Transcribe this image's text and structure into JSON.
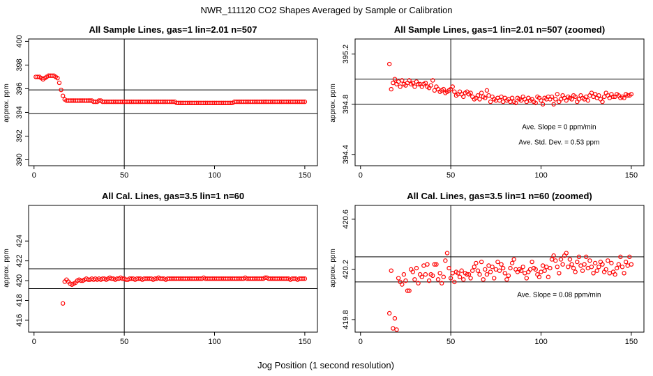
{
  "figure": {
    "title": "NWR_111120  CO2 Shapes Averaged by Sample or Calibration",
    "xlabel": "Jog Position (1 second resolution)"
  },
  "colors": {
    "points": "#ff0000",
    "lines": "#000000",
    "background": "#ffffff"
  },
  "chart_data": [
    {
      "type": "scatter",
      "title": "All Sample Lines, gas=1 lin=2.01 n=507",
      "xlabel": "",
      "ylabel": "approx. ppm",
      "xlim": [
        -3,
        157
      ],
      "ylim": [
        389.5,
        400.2
      ],
      "xticks": [
        0,
        50,
        100,
        150
      ],
      "xtick_labels": [
        "0",
        "50",
        "100",
        "150"
      ],
      "yticks": [
        390,
        392,
        394,
        396,
        398,
        400
      ],
      "ytick_labels": [
        "390",
        "392",
        "394",
        "396",
        "398",
        "400"
      ],
      "hlines": [
        395.9,
        393.9
      ],
      "vlines": [
        50
      ],
      "annotations": [],
      "series": [
        {
          "x_start": 1,
          "x_step": 1,
          "y": [
            397.0,
            397.0,
            397.0,
            396.9,
            396.8,
            396.9,
            397.0,
            397.1,
            397.1,
            397.1,
            397.1,
            397.0,
            396.9,
            396.5,
            395.9,
            395.4,
            395.1,
            395.0,
            395.0,
            395.0,
            395.0,
            395.0,
            395.0,
            395.0,
            395.0,
            395.0,
            395.0,
            395.0,
            395.0,
            395.0,
            395.0,
            395.0,
            394.9,
            394.9,
            394.9,
            395.0,
            395.0,
            394.9,
            394.9,
            394.9,
            394.9,
            394.9,
            394.9,
            394.9,
            394.9,
            394.9,
            394.9,
            394.9,
            394.9,
            394.9,
            394.9,
            394.9,
            394.9,
            394.9,
            394.9,
            394.9,
            394.9,
            394.9,
            394.9,
            394.9,
            394.9,
            394.9,
            394.9,
            394.9,
            394.9,
            394.9,
            394.9,
            394.9,
            394.9,
            394.9,
            394.9,
            394.9,
            394.9,
            394.9,
            394.9,
            394.9,
            394.9,
            394.9,
            394.8,
            394.8,
            394.8,
            394.8,
            394.8,
            394.8,
            394.8,
            394.8,
            394.8,
            394.8,
            394.8,
            394.8,
            394.8,
            394.8,
            394.8,
            394.8,
            394.8,
            394.8,
            394.8,
            394.8,
            394.8,
            394.8,
            394.8,
            394.8,
            394.8,
            394.8,
            394.8,
            394.8,
            394.8,
            394.8,
            394.8,
            394.8,
            394.9,
            394.9,
            394.9,
            394.9,
            394.9,
            394.9,
            394.9,
            394.9,
            394.9,
            394.9,
            394.9,
            394.9,
            394.9,
            394.9,
            394.9,
            394.9,
            394.9,
            394.9,
            394.9,
            394.9,
            394.9,
            394.9,
            394.9,
            394.9,
            394.9,
            394.9,
            394.9,
            394.9,
            394.9,
            394.9,
            394.9,
            394.9,
            394.9,
            394.9,
            394.9,
            394.9,
            394.9,
            394.9,
            394.9,
            394.9
          ]
        }
      ]
    },
    {
      "type": "scatter",
      "title": "All Sample Lines, gas=1 lin=2.01 n=507 (zoomed)",
      "xlabel": "",
      "ylabel": "approx. ppm",
      "xlim": [
        -3,
        157
      ],
      "ylim": [
        394.31,
        395.32
      ],
      "xticks": [
        0,
        50,
        100,
        150
      ],
      "xtick_labels": [
        "0",
        "50",
        "100",
        "150"
      ],
      "yticks": [
        394.4,
        394.8,
        395.2
      ],
      "ytick_labels": [
        "394.4",
        "394.8",
        "395.2"
      ],
      "hlines": [
        395.0,
        394.8
      ],
      "vlines": [
        50
      ],
      "annotations": [
        {
          "text": "Ave. Slope =  0  ppm/min",
          "x": 110,
          "y": 394.6
        },
        {
          "text": "Ave. Std. Dev. =  0.53  ppm",
          "x": 110,
          "y": 394.48
        }
      ],
      "series": [
        {
          "x_start": 16,
          "x_step": 1,
          "y": [
            395.12,
            394.92,
            394.97,
            395.0,
            394.96,
            394.98,
            394.94,
            394.99,
            394.96,
            394.95,
            394.97,
            394.99,
            394.96,
            394.97,
            394.94,
            394.98,
            394.96,
            394.96,
            394.94,
            394.96,
            394.97,
            394.94,
            394.93,
            394.95,
            394.99,
            394.91,
            394.94,
            394.92,
            394.9,
            394.91,
            394.92,
            394.89,
            394.9,
            394.91,
            394.92,
            394.94,
            394.9,
            394.87,
            394.88,
            394.9,
            394.88,
            394.86,
            394.89,
            394.9,
            394.88,
            394.89,
            394.86,
            394.84,
            394.85,
            394.87,
            394.84,
            394.89,
            394.86,
            394.85,
            394.91,
            394.87,
            394.82,
            394.86,
            394.84,
            394.83,
            394.85,
            394.83,
            394.86,
            394.82,
            394.85,
            394.83,
            394.84,
            394.82,
            394.85,
            394.82,
            394.81,
            394.85,
            394.84,
            394.83,
            394.86,
            394.84,
            394.82,
            394.85,
            394.83,
            394.84,
            394.82,
            394.81,
            394.86,
            394.85,
            394.83,
            394.8,
            394.85,
            394.84,
            394.86,
            394.84,
            394.86,
            394.8,
            394.84,
            394.88,
            394.82,
            394.84,
            394.87,
            394.85,
            394.83,
            394.86,
            394.85,
            394.84,
            394.87,
            394.86,
            394.82,
            394.84,
            394.87,
            394.85,
            394.84,
            394.86,
            394.83,
            394.87,
            394.89,
            394.86,
            394.88,
            394.85,
            394.87,
            394.84,
            394.82,
            394.86,
            394.89,
            394.87,
            394.85,
            394.88,
            394.86,
            394.86,
            394.88,
            394.87,
            394.85,
            394.86,
            394.85,
            394.88,
            394.87,
            394.87,
            394.88
          ]
        }
      ]
    },
    {
      "type": "scatter",
      "title": "All Cal. Lines, gas=3.5 lin=1 n=60",
      "xlabel": "",
      "ylabel": "approx. ppm",
      "xlim": [
        -3,
        157
      ],
      "ylim": [
        414.8,
        427.6
      ],
      "xticks": [
        0,
        50,
        100,
        150
      ],
      "xtick_labels": [
        "0",
        "50",
        "100",
        "150"
      ],
      "yticks": [
        416,
        418,
        420,
        422,
        424
      ],
      "ytick_labels": [
        "416",
        "418",
        "420",
        "422",
        "424"
      ],
      "hlines": [
        421.2,
        419.2
      ],
      "vlines": [
        50
      ],
      "annotations": [],
      "series": [
        {
          "x_start": 16,
          "x_step": 1,
          "y": [
            417.7,
            419.9,
            420.1,
            419.9,
            419.7,
            419.6,
            419.7,
            419.8,
            420.0,
            420.1,
            420.0,
            420.0,
            420.1,
            420.2,
            420.1,
            420.1,
            420.2,
            420.1,
            420.2,
            420.1,
            420.2,
            420.1,
            420.2,
            420.2,
            420.1,
            420.2,
            420.3,
            420.2,
            420.2,
            420.1,
            420.2,
            420.2,
            420.3,
            420.2,
            420.2,
            420.1,
            420.1,
            420.2,
            420.2,
            420.2,
            420.1,
            420.2,
            420.2,
            420.2,
            420.1,
            420.2,
            420.2,
            420.2,
            420.2,
            420.2,
            420.1,
            420.2,
            420.2,
            420.3,
            420.2,
            420.2,
            420.2,
            420.1,
            420.2,
            420.2,
            420.2,
            420.2,
            420.2,
            420.2,
            420.2,
            420.2,
            420.2,
            420.2,
            420.2,
            420.2,
            420.2,
            420.2,
            420.2,
            420.2,
            420.2,
            420.2,
            420.2,
            420.2,
            420.3,
            420.2,
            420.2,
            420.2,
            420.2,
            420.2,
            420.2,
            420.2,
            420.2,
            420.2,
            420.2,
            420.2,
            420.2,
            420.2,
            420.2,
            420.2,
            420.2,
            420.2,
            420.2,
            420.2,
            420.2,
            420.2,
            420.2,
            420.3,
            420.2,
            420.2,
            420.2,
            420.2,
            420.2,
            420.2,
            420.2,
            420.2,
            420.2,
            420.2,
            420.3,
            420.3,
            420.2,
            420.2,
            420.2,
            420.2,
            420.2,
            420.2,
            420.2,
            420.2,
            420.2,
            420.2,
            420.2,
            420.2,
            420.1,
            420.2,
            420.2,
            420.2,
            420.1,
            420.2,
            420.2,
            420.2,
            420.2
          ]
        }
      ]
    },
    {
      "type": "scatter",
      "title": "All Cal. Lines, gas=3.5 lin=1 n=60 (zoomed)",
      "xlabel": "",
      "ylabel": "approx. ppm",
      "xlim": [
        -3,
        157
      ],
      "ylim": [
        419.7,
        420.71
      ],
      "xticks": [
        0,
        50,
        100,
        150
      ],
      "xtick_labels": [
        "0",
        "50",
        "100",
        "150"
      ],
      "yticks": [
        419.8,
        420.2,
        420.6
      ],
      "ytick_labels": [
        "419.8",
        "420.2",
        "420.6"
      ],
      "hlines": [
        420.3,
        420.1
      ],
      "vlines": [
        50
      ],
      "annotations": [
        {
          "text": "Ave. Slope =  0.08  ppm/min",
          "x": 110,
          "y": 419.98
        }
      ],
      "series": [
        {
          "x_start": 16,
          "x_step": 1,
          "y": [
            419.85,
            420.19,
            419.73,
            419.81,
            419.72,
            420.13,
            420.1,
            420.08,
            420.16,
            420.11,
            420.03,
            420.03,
            420.2,
            420.18,
            420.12,
            420.21,
            420.09,
            420.16,
            420.14,
            420.23,
            420.16,
            420.24,
            420.11,
            420.16,
            420.15,
            420.24,
            420.24,
            420.12,
            420.17,
            420.09,
            420.14,
            420.27,
            420.33,
            420.21,
            420.13,
            420.17,
            420.1,
            420.18,
            420.17,
            420.14,
            420.19,
            420.12,
            420.17,
            420.16,
            420.16,
            420.13,
            420.19,
            420.22,
            420.25,
            420.19,
            420.16,
            420.26,
            420.12,
            420.2,
            420.16,
            420.23,
            420.18,
            420.22,
            420.13,
            420.2,
            420.26,
            420.19,
            420.24,
            420.21,
            420.17,
            420.12,
            420.15,
            420.21,
            420.25,
            420.28,
            420.2,
            420.18,
            420.2,
            420.19,
            420.22,
            420.17,
            420.13,
            420.18,
            420.2,
            420.26,
            420.21,
            420.2,
            420.16,
            420.14,
            420.18,
            420.23,
            420.19,
            420.22,
            420.14,
            420.21,
            420.28,
            420.31,
            420.27,
            420.22,
            420.17,
            420.28,
            420.24,
            420.31,
            420.33,
            420.22,
            420.28,
            420.24,
            420.21,
            420.18,
            420.26,
            420.3,
            420.23,
            420.19,
            420.24,
            420.3,
            420.21,
            420.27,
            420.22,
            420.17,
            420.25,
            420.19,
            420.22,
            420.26,
            420.24,
            420.18,
            420.2,
            420.27,
            420.17,
            420.25,
            420.18,
            420.16,
            420.21,
            420.24,
            420.3,
            420.22,
            420.17,
            420.26,
            420.23,
            420.3,
            420.24
          ]
        }
      ]
    }
  ]
}
